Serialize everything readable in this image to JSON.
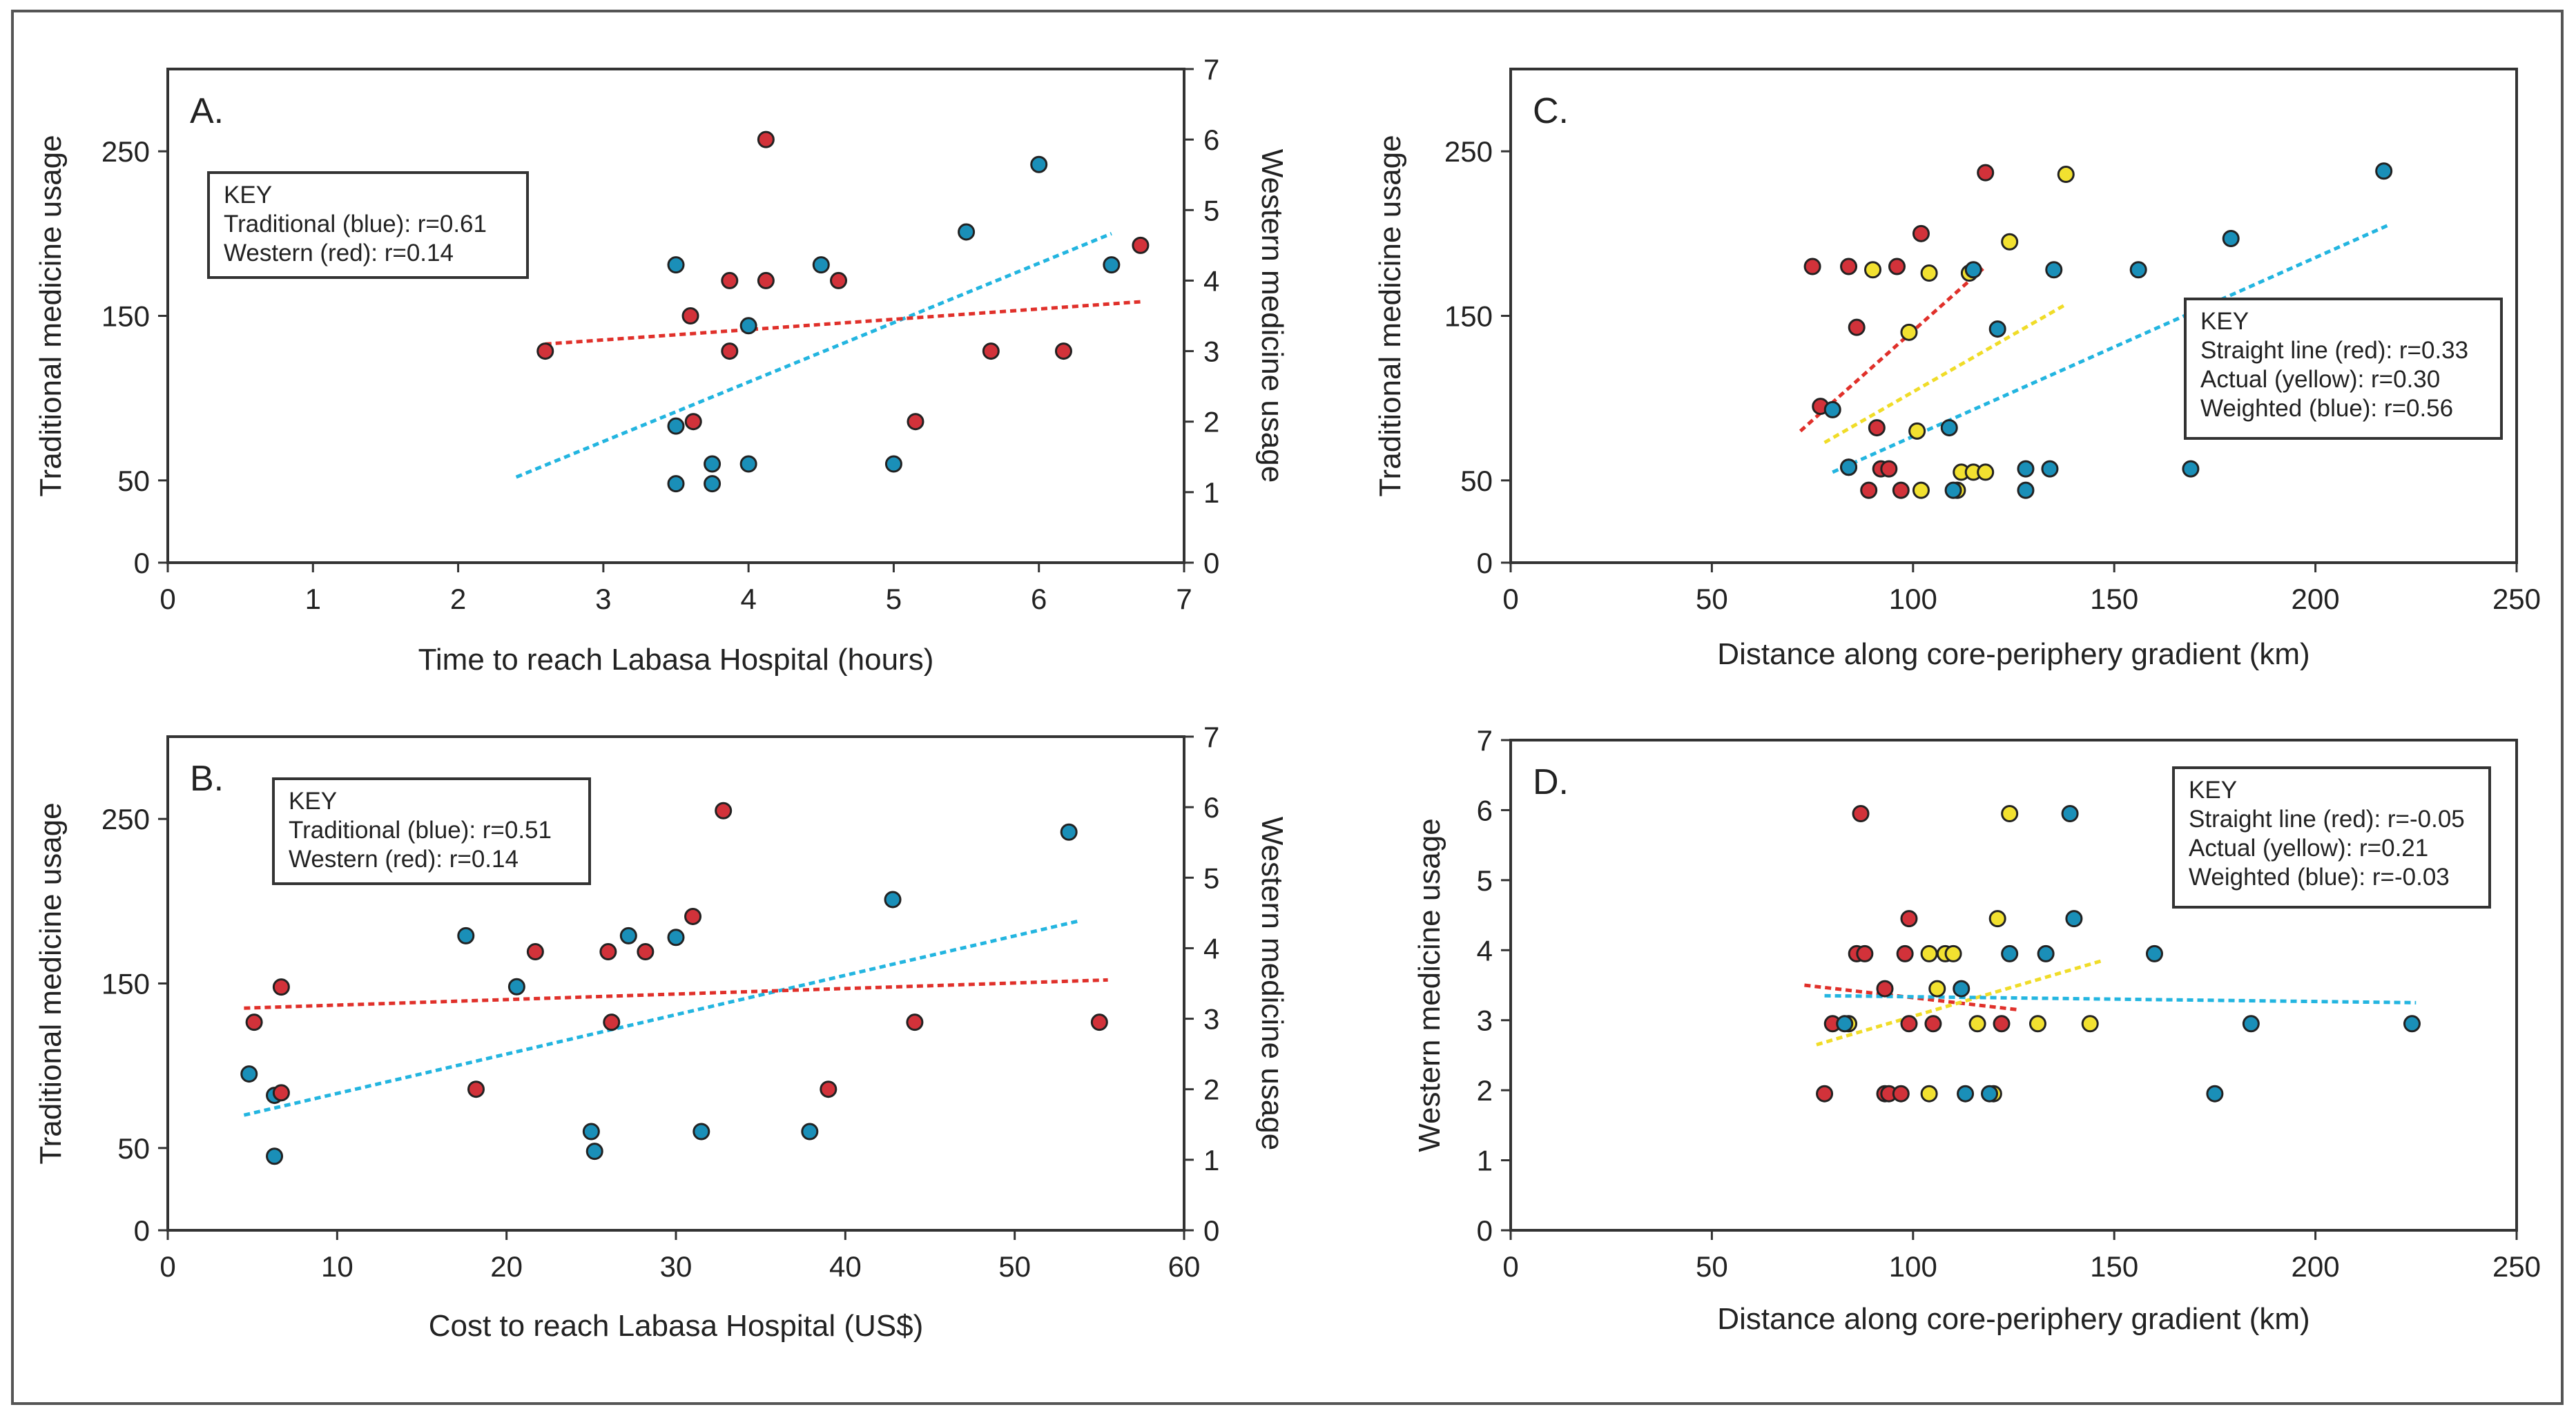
{
  "colors": {
    "blue": "#1a8fb8",
    "red": "#d2323a",
    "yellow": "#f2e130",
    "blue_line": "#23b5e0",
    "red_line": "#e0302a",
    "yellow_line": "#f0dc28"
  },
  "chart_data": [
    {
      "panel": "A.",
      "type": "scatter",
      "xlabel": "Time to reach Labasa Hospital (hours)",
      "ylabel": "Traditional medicine usage",
      "y2label": "Western medicine usage",
      "xlim": [
        0,
        7
      ],
      "ylim": [
        0,
        300
      ],
      "y2lim": [
        0,
        7
      ],
      "xticks": [
        "0",
        "1",
        "2",
        "3",
        "4",
        "5",
        "6",
        "7"
      ],
      "yticks": [
        [
          "0",
          0
        ],
        [
          "50",
          50
        ],
        [
          "150",
          150
        ],
        [
          "250",
          250
        ]
      ],
      "y2ticks": [
        "0",
        "1",
        "2",
        "3",
        "4",
        "5",
        "6",
        "7"
      ],
      "key": {
        "title": "KEY",
        "lines": [
          "Traditional (blue): r=0.61",
          "Western (red): r=0.14"
        ]
      },
      "series": [
        {
          "name": "Traditional",
          "color": "blue",
          "axis": "left",
          "points": [
            [
              3.5,
              181
            ],
            [
              3.5,
              83
            ],
            [
              3.5,
              48
            ],
            [
              3.75,
              60
            ],
            [
              3.75,
              48
            ],
            [
              4.0,
              144
            ],
            [
              4.0,
              60
            ],
            [
              4.5,
              181
            ],
            [
              5.0,
              60
            ],
            [
              5.5,
              201
            ],
            [
              6.0,
              242
            ],
            [
              6.5,
              181
            ]
          ],
          "trend": [
            [
              2.4,
              52
            ],
            [
              6.5,
              200
            ]
          ]
        },
        {
          "name": "Western",
          "color": "red",
          "axis": "right",
          "points": [
            [
              2.6,
              3.0
            ],
            [
              3.6,
              3.5
            ],
            [
              3.62,
              2.0
            ],
            [
              3.87,
              4.0
            ],
            [
              3.87,
              3.0
            ],
            [
              4.12,
              6.0
            ],
            [
              4.12,
              4.0
            ],
            [
              4.62,
              4.0
            ],
            [
              5.15,
              2.0
            ],
            [
              5.67,
              3.0
            ],
            [
              6.17,
              3.0
            ],
            [
              6.7,
              4.5
            ]
          ],
          "trend": [
            [
              2.6,
              3.1
            ],
            [
              6.7,
              3.7
            ]
          ]
        }
      ]
    },
    {
      "panel": "B.",
      "type": "scatter",
      "xlabel": "Cost to reach Labasa Hospital (US$)",
      "ylabel": "Traditional medicine usage",
      "y2label": "Western medicine usage",
      "xlim": [
        0,
        60
      ],
      "ylim": [
        0,
        300
      ],
      "y2lim": [
        0,
        7
      ],
      "xticks": [
        "0",
        "10",
        "20",
        "30",
        "40",
        "50",
        "60"
      ],
      "yticks": [
        [
          "0",
          0
        ],
        [
          "50",
          50
        ],
        [
          "150",
          150
        ],
        [
          "250",
          250
        ]
      ],
      "y2ticks": [
        "0",
        "1",
        "2",
        "3",
        "4",
        "5",
        "6",
        "7"
      ],
      "key": {
        "title": "KEY",
        "lines": [
          "Traditional (blue): r=0.51",
          "Western (red): r=0.14"
        ]
      },
      "series": [
        {
          "name": "Traditional",
          "color": "blue",
          "axis": "left",
          "points": [
            [
              4.8,
              95
            ],
            [
              6.3,
              82
            ],
            [
              6.3,
              45
            ],
            [
              17.6,
              179
            ],
            [
              20.6,
              148
            ],
            [
              25.0,
              60
            ],
            [
              25.2,
              48
            ],
            [
              27.2,
              179
            ],
            [
              30.0,
              178
            ],
            [
              31.5,
              60
            ],
            [
              37.9,
              60
            ],
            [
              42.8,
              201
            ],
            [
              53.2,
              242
            ]
          ],
          "trend": [
            [
              4.5,
              70
            ],
            [
              53.8,
              188
            ]
          ]
        },
        {
          "name": "Western",
          "color": "red",
          "axis": "right",
          "points": [
            [
              5.1,
              2.95
            ],
            [
              6.7,
              3.45
            ],
            [
              6.7,
              1.95
            ],
            [
              18.2,
              2.0
            ],
            [
              21.7,
              3.95
            ],
            [
              26.0,
              3.95
            ],
            [
              26.2,
              2.95
            ],
            [
              28.2,
              3.95
            ],
            [
              31.0,
              4.45
            ],
            [
              32.8,
              5.95
            ],
            [
              39.0,
              2.0
            ],
            [
              44.1,
              2.95
            ],
            [
              55.0,
              2.95
            ]
          ],
          "trend": [
            [
              4.5,
              3.15
            ],
            [
              55.5,
              3.55
            ]
          ]
        }
      ]
    },
    {
      "panel": "C.",
      "type": "scatter",
      "xlabel": "Distance along core-periphery gradient (km)",
      "ylabel": "Traditional medicine usage",
      "xlim": [
        0,
        250
      ],
      "ylim": [
        0,
        300
      ],
      "xticks": [
        "0",
        "50",
        "100",
        "150",
        "200",
        "250"
      ],
      "yticks": [
        [
          "0",
          0
        ],
        [
          "50",
          50
        ],
        [
          "150",
          150
        ],
        [
          "250",
          250
        ]
      ],
      "key": {
        "title": "KEY",
        "lines": [
          "Straight line (red): r=0.33",
          "Actual (yellow): r=0.30",
          "Weighted (blue): r=0.56"
        ]
      },
      "series": [
        {
          "name": "Straight line",
          "color": "red",
          "axis": "left",
          "points": [
            [
              75,
              180
            ],
            [
              77,
              95
            ],
            [
              84,
              180
            ],
            [
              84,
              58
            ],
            [
              86,
              143
            ],
            [
              89,
              44
            ],
            [
              91,
              82
            ],
            [
              92,
              57
            ],
            [
              94,
              57
            ],
            [
              96,
              180
            ],
            [
              97,
              44
            ],
            [
              102,
              200
            ],
            [
              118,
              237
            ]
          ],
          "trend": [
            [
              72,
              80
            ],
            [
              118,
              180
            ]
          ]
        },
        {
          "name": "Actual",
          "color": "yellow",
          "axis": "left",
          "points": [
            [
              90,
              178
            ],
            [
              99,
              140
            ],
            [
              101,
              80
            ],
            [
              102,
              44
            ],
            [
              104,
              176
            ],
            [
              111,
              44
            ],
            [
              112,
              55
            ],
            [
              114,
              176
            ],
            [
              115,
              55
            ],
            [
              118,
              55
            ],
            [
              124,
              195
            ],
            [
              138,
              236
            ]
          ],
          "trend": [
            [
              78,
              73
            ],
            [
              138,
              157
            ]
          ]
        },
        {
          "name": "Weighted",
          "color": "blue",
          "axis": "left",
          "points": [
            [
              80,
              93
            ],
            [
              84,
              58
            ],
            [
              109,
              82
            ],
            [
              110,
              44
            ],
            [
              115,
              178
            ],
            [
              121,
              142
            ],
            [
              128,
              57
            ],
            [
              128,
              44
            ],
            [
              134,
              57
            ],
            [
              135,
              178
            ],
            [
              156,
              178
            ],
            [
              169,
              57
            ],
            [
              179,
              197
            ],
            [
              217,
              238
            ]
          ],
          "trend": [
            [
              80,
              55
            ],
            [
              218,
              205
            ]
          ]
        }
      ]
    },
    {
      "panel": "D.",
      "type": "scatter",
      "xlabel": "Distance along core-periphery gradient (km)",
      "ylabel": "Western medicine usage",
      "xlim": [
        0,
        250
      ],
      "ylim": [
        0,
        7
      ],
      "xticks": [
        "0",
        "50",
        "100",
        "150",
        "200",
        "250"
      ],
      "yticks": [
        [
          "0",
          0
        ],
        [
          "1",
          1
        ],
        [
          "2",
          2
        ],
        [
          "3",
          3
        ],
        [
          "4",
          4
        ],
        [
          "5",
          5
        ],
        [
          "6",
          6
        ],
        [
          "7",
          7
        ]
      ],
      "key": {
        "title": "KEY",
        "lines": [
          "Straight line (red): r=-0.05",
          "Actual (yellow): r=0.21",
          "Weighted (blue): r=-0.03"
        ]
      },
      "series": [
        {
          "name": "Straight line",
          "color": "red",
          "axis": "left",
          "points": [
            [
              78,
              1.95
            ],
            [
              80,
              2.95
            ],
            [
              86,
              3.95
            ],
            [
              87,
              5.95
            ],
            [
              88,
              3.95
            ],
            [
              93,
              1.95
            ],
            [
              93,
              3.45
            ],
            [
              94,
              1.95
            ],
            [
              97,
              1.95
            ],
            [
              98,
              3.95
            ],
            [
              99,
              4.45
            ],
            [
              99,
              2.95
            ],
            [
              105,
              2.95
            ],
            [
              122,
              2.95
            ]
          ],
          "trend": [
            [
              73,
              3.5
            ],
            [
              126,
              3.15
            ]
          ]
        },
        {
          "name": "Actual",
          "color": "yellow",
          "axis": "left",
          "points": [
            [
              84,
              2.95
            ],
            [
              104,
              1.95
            ],
            [
              104,
              3.95
            ],
            [
              106,
              3.45
            ],
            [
              108,
              3.95
            ],
            [
              110,
              3.95
            ],
            [
              116,
              2.95
            ],
            [
              120,
              1.95
            ],
            [
              121,
              4.45
            ],
            [
              124,
              5.95
            ],
            [
              131,
              2.95
            ],
            [
              144,
              2.95
            ]
          ],
          "trend": [
            [
              76,
              2.65
            ],
            [
              147,
              3.85
            ]
          ]
        },
        {
          "name": "Weighted",
          "color": "blue",
          "axis": "left",
          "points": [
            [
              83,
              2.95
            ],
            [
              112,
              3.45
            ],
            [
              113,
              1.95
            ],
            [
              119,
              1.95
            ],
            [
              124,
              3.95
            ],
            [
              133,
              3.95
            ],
            [
              139,
              5.95
            ],
            [
              140,
              4.45
            ],
            [
              160,
              3.95
            ],
            [
              175,
              1.95
            ],
            [
              184,
              2.95
            ],
            [
              224,
              2.95
            ]
          ],
          "trend": [
            [
              78,
              3.35
            ],
            [
              225,
              3.25
            ]
          ]
        }
      ]
    }
  ]
}
